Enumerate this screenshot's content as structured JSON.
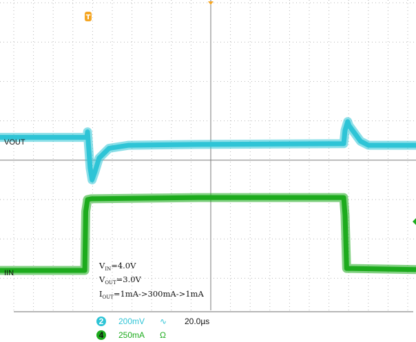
{
  "chart_data": {
    "type": "line",
    "title": "",
    "grid": true,
    "divisions": {
      "x": 10,
      "y": 8
    },
    "time_per_div_us": 20,
    "series": [
      {
        "name": "VOUT",
        "channel": "2",
        "scale": "200mV",
        "coupling": "∿",
        "color": "#2ec4d6",
        "unit": "div",
        "points": [
          [
            0,
            4.58
          ],
          [
            4.38,
            4.58
          ],
          [
            4.42,
            4.72
          ],
          [
            4.45,
            4.5
          ],
          [
            4.55,
            3.8
          ],
          [
            4.65,
            3.5
          ],
          [
            4.8,
            3.72
          ],
          [
            5.0,
            4.05
          ],
          [
            5.5,
            4.3
          ],
          [
            6.5,
            4.38
          ],
          [
            10,
            4.4
          ],
          [
            17.35,
            4.42
          ],
          [
            17.42,
            4.76
          ],
          [
            17.55,
            4.98
          ],
          [
            17.62,
            4.88
          ],
          [
            18.2,
            4.48
          ],
          [
            18.6,
            4.38
          ],
          [
            21,
            4.38
          ]
        ]
      },
      {
        "name": "IIN",
        "channel": "4",
        "scale": "250mA",
        "coupling": "Ω",
        "color": "#1dab1d",
        "unit": "div",
        "points": [
          [
            0,
            1.2
          ],
          [
            4.28,
            1.2
          ],
          [
            4.33,
            2.7
          ],
          [
            4.42,
            3.0
          ],
          [
            4.6,
            3.02
          ],
          [
            10,
            3.05
          ],
          [
            17.35,
            3.05
          ],
          [
            17.42,
            2.6
          ],
          [
            17.5,
            1.25
          ],
          [
            21,
            1.22
          ]
        ]
      }
    ],
    "annotations": [
      {
        "main": "V",
        "sub": "IN",
        "rest": "=4.0V"
      },
      {
        "main": "V",
        "sub": "OUT",
        "rest": "=3.0V"
      },
      {
        "main": "I",
        "sub": "OUT",
        "rest": "=1mA->300mA->1mA"
      }
    ],
    "trigger_label": "T",
    "timebase": "20.0µs"
  }
}
